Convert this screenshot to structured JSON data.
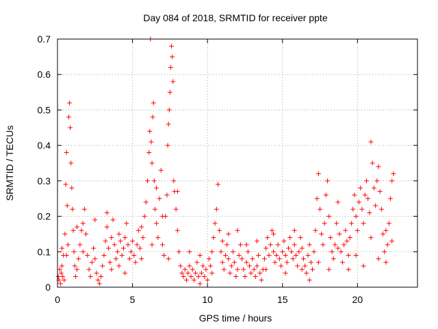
{
  "chart_data": {
    "type": "scatter",
    "title": "Day 084 of 2018, SRMTID for receiver ppte",
    "xlabel": "GPS time / hours",
    "ylabel": "SRMTID / TECUs",
    "xlim": [
      0,
      24
    ],
    "ylim": [
      0,
      0.7
    ],
    "xticks": [
      0,
      5,
      10,
      15,
      20
    ],
    "xtick_labels": [
      "0",
      "5",
      "10",
      "15",
      "20"
    ],
    "yticks": [
      0,
      0.1,
      0.2,
      0.3,
      0.4,
      0.5,
      0.6,
      0.7
    ],
    "ytick_labels": [
      "0",
      "0.1",
      "0.2",
      "0.3",
      "0.4",
      "0.5",
      "0.6",
      "0.7"
    ],
    "grid": true,
    "marker": "+",
    "color": "#ff0000",
    "series": [
      {
        "name": "SRMTID",
        "points": [
          [
            0.05,
            0.03
          ],
          [
            0.1,
            0.02
          ],
          [
            0.15,
            0.05
          ],
          [
            0.2,
            0.01
          ],
          [
            0.25,
            0.04
          ],
          [
            0.3,
            0.06
          ],
          [
            0.35,
            0.03
          ],
          [
            0.4,
            0.09
          ],
          [
            0.45,
            0.02
          ],
          [
            0.5,
            0.15
          ],
          [
            0.55,
            0.29
          ],
          [
            0.6,
            0.38
          ],
          [
            0.65,
            0.23
          ],
          [
            0.7,
            0.12
          ],
          [
            0.75,
            0.48
          ],
          [
            0.8,
            0.52
          ],
          [
            0.85,
            0.45
          ],
          [
            0.9,
            0.35
          ],
          [
            0.95,
            0.28
          ],
          [
            1.0,
            0.22
          ],
          [
            1.05,
            0.16
          ],
          [
            1.1,
            0.1
          ],
          [
            1.15,
            0.06
          ],
          [
            1.2,
            0.03
          ],
          [
            1.3,
            0.05
          ],
          [
            1.4,
            0.08
          ],
          [
            1.5,
            0.12
          ],
          [
            1.6,
            0.16
          ],
          [
            1.7,
            0.18
          ],
          [
            1.8,
            0.22
          ],
          [
            1.9,
            0.15
          ],
          [
            2.0,
            0.09
          ],
          [
            2.1,
            0.05
          ],
          [
            2.2,
            0.03
          ],
          [
            2.3,
            0.07
          ],
          [
            2.4,
            0.11
          ],
          [
            2.5,
            0.08
          ],
          [
            2.6,
            0.04
          ],
          [
            2.7,
            0.02
          ],
          [
            2.8,
            0.01
          ],
          [
            2.9,
            0.03
          ],
          [
            3.0,
            0.06
          ],
          [
            3.1,
            0.09
          ],
          [
            3.2,
            0.13
          ],
          [
            3.3,
            0.17
          ],
          [
            3.4,
            0.11
          ],
          [
            3.5,
            0.07
          ],
          [
            3.6,
            0.14
          ],
          [
            3.7,
            0.19
          ],
          [
            3.8,
            0.12
          ],
          [
            3.9,
            0.08
          ],
          [
            4.0,
            0.1
          ],
          [
            4.1,
            0.15
          ],
          [
            4.2,
            0.13
          ],
          [
            4.3,
            0.09
          ],
          [
            4.4,
            0.11
          ],
          [
            4.5,
            0.14
          ],
          [
            4.6,
            0.18
          ],
          [
            4.7,
            0.12
          ],
          [
            4.8,
            0.08
          ],
          [
            4.9,
            0.1
          ],
          [
            5.0,
            0.13
          ],
          [
            5.1,
            0.09
          ],
          [
            5.2,
            0.07
          ],
          [
            5.3,
            0.12
          ],
          [
            5.4,
            0.16
          ],
          [
            5.5,
            0.11
          ],
          [
            5.6,
            0.08
          ],
          [
            5.7,
            0.14
          ],
          [
            5.8,
            0.2
          ],
          [
            5.9,
            0.24
          ],
          [
            6.0,
            0.3
          ],
          [
            6.1,
            0.38
          ],
          [
            6.15,
            0.44
          ],
          [
            6.2,
            0.7
          ],
          [
            6.25,
            0.41
          ],
          [
            6.3,
            0.35
          ],
          [
            6.35,
            0.48
          ],
          [
            6.4,
            0.52
          ],
          [
            6.45,
            0.3
          ],
          [
            6.5,
            0.22
          ],
          [
            6.6,
            0.18
          ],
          [
            6.7,
            0.14
          ],
          [
            6.8,
            0.25
          ],
          [
            6.9,
            0.33
          ],
          [
            7.0,
            0.12
          ],
          [
            7.1,
            0.09
          ],
          [
            7.2,
            0.2
          ],
          [
            7.3,
            0.26
          ],
          [
            7.35,
            0.4
          ],
          [
            7.4,
            0.46
          ],
          [
            7.45,
            0.5
          ],
          [
            7.5,
            0.55
          ],
          [
            7.55,
            0.62
          ],
          [
            7.6,
            0.68
          ],
          [
            7.65,
            0.65
          ],
          [
            7.7,
            0.58
          ],
          [
            7.75,
            0.3
          ],
          [
            7.8,
            0.27
          ],
          [
            7.9,
            0.22
          ],
          [
            8.0,
            0.16
          ],
          [
            8.1,
            0.1
          ],
          [
            8.2,
            0.06
          ],
          [
            8.3,
            0.04
          ],
          [
            8.4,
            0.03
          ],
          [
            8.5,
            0.05
          ],
          [
            8.6,
            0.02
          ],
          [
            8.7,
            0.04
          ],
          [
            8.8,
            0.06
          ],
          [
            8.9,
            0.03
          ],
          [
            9.0,
            0.05
          ],
          [
            9.1,
            0.02
          ],
          [
            9.2,
            0.04
          ],
          [
            9.3,
            0.07
          ],
          [
            9.4,
            0.03
          ],
          [
            9.5,
            0.01
          ],
          [
            9.6,
            0.04
          ],
          [
            9.7,
            0.06
          ],
          [
            9.8,
            0.03
          ],
          [
            9.9,
            0.05
          ],
          [
            10.0,
            0.02
          ],
          [
            10.1,
            0.08
          ],
          [
            10.2,
            0.06
          ],
          [
            10.3,
            0.1
          ],
          [
            10.4,
            0.14
          ],
          [
            10.5,
            0.18
          ],
          [
            10.6,
            0.22
          ],
          [
            10.7,
            0.29
          ],
          [
            10.8,
            0.16
          ],
          [
            10.9,
            0.1
          ],
          [
            11.0,
            0.07
          ],
          [
            11.1,
            0.05
          ],
          [
            11.2,
            0.09
          ],
          [
            11.3,
            0.12
          ],
          [
            11.4,
            0.08
          ],
          [
            11.5,
            0.04
          ],
          [
            11.6,
            0.06
          ],
          [
            11.7,
            0.1
          ],
          [
            11.8,
            0.07
          ],
          [
            11.9,
            0.03
          ],
          [
            12.0,
            0.05
          ],
          [
            12.1,
            0.09
          ],
          [
            12.2,
            0.12
          ],
          [
            12.3,
            0.08
          ],
          [
            12.4,
            0.05
          ],
          [
            12.5,
            0.03
          ],
          [
            12.6,
            0.07
          ],
          [
            12.7,
            0.1
          ],
          [
            12.8,
            0.06
          ],
          [
            12.9,
            0.04
          ],
          [
            13.0,
            0.08
          ],
          [
            13.1,
            0.05
          ],
          [
            13.2,
            0.03
          ],
          [
            13.3,
            0.06
          ],
          [
            13.4,
            0.09
          ],
          [
            13.5,
            0.04
          ],
          [
            13.6,
            0.02
          ],
          [
            13.7,
            0.05
          ],
          [
            13.8,
            0.08
          ],
          [
            13.9,
            0.11
          ],
          [
            14.0,
            0.14
          ],
          [
            14.1,
            0.09
          ],
          [
            14.2,
            0.12
          ],
          [
            14.3,
            0.16
          ],
          [
            14.4,
            0.1
          ],
          [
            14.5,
            0.07
          ],
          [
            14.6,
            0.09
          ],
          [
            14.7,
            0.12
          ],
          [
            14.8,
            0.08
          ],
          [
            14.9,
            0.06
          ],
          [
            15.0,
            0.1
          ],
          [
            15.1,
            0.13
          ],
          [
            15.2,
            0.09
          ],
          [
            15.3,
            0.07
          ],
          [
            15.4,
            0.11
          ],
          [
            15.5,
            0.14
          ],
          [
            15.6,
            0.1
          ],
          [
            15.7,
            0.08
          ],
          [
            15.8,
            0.12
          ],
          [
            15.9,
            0.09
          ],
          [
            16.0,
            0.06
          ],
          [
            16.1,
            0.1
          ],
          [
            16.2,
            0.14
          ],
          [
            16.3,
            0.11
          ],
          [
            16.4,
            0.08
          ],
          [
            16.5,
            0.06
          ],
          [
            16.6,
            0.04
          ],
          [
            16.7,
            0.09
          ],
          [
            16.8,
            0.12
          ],
          [
            16.9,
            0.07
          ],
          [
            17.0,
            0.05
          ],
          [
            17.1,
            0.1
          ],
          [
            17.2,
            0.16
          ],
          [
            17.3,
            0.25
          ],
          [
            17.4,
            0.32
          ],
          [
            17.5,
            0.22
          ],
          [
            17.6,
            0.15
          ],
          [
            17.7,
            0.12
          ],
          [
            17.8,
            0.18
          ],
          [
            17.9,
            0.26
          ],
          [
            18.0,
            0.3
          ],
          [
            18.1,
            0.2
          ],
          [
            18.2,
            0.14
          ],
          [
            18.3,
            0.1
          ],
          [
            18.4,
            0.08
          ],
          [
            18.5,
            0.12
          ],
          [
            18.6,
            0.18
          ],
          [
            18.7,
            0.24
          ],
          [
            18.8,
            0.15
          ],
          [
            18.9,
            0.1
          ],
          [
            19.0,
            0.07
          ],
          [
            19.1,
            0.12
          ],
          [
            19.2,
            0.16
          ],
          [
            19.3,
            0.13
          ],
          [
            19.4,
            0.09
          ],
          [
            19.5,
            0.14
          ],
          [
            19.6,
            0.18
          ],
          [
            19.7,
            0.22
          ],
          [
            19.8,
            0.26
          ],
          [
            19.9,
            0.2
          ],
          [
            20.0,
            0.16
          ],
          [
            20.1,
            0.24
          ],
          [
            20.2,
            0.28
          ],
          [
            20.3,
            0.22
          ],
          [
            20.4,
            0.18
          ],
          [
            20.5,
            0.26
          ],
          [
            20.6,
            0.3
          ],
          [
            20.7,
            0.25
          ],
          [
            20.8,
            0.21
          ],
          [
            20.9,
            0.41
          ],
          [
            21.0,
            0.35
          ],
          [
            21.1,
            0.28
          ],
          [
            21.2,
            0.23
          ],
          [
            21.3,
            0.3
          ],
          [
            21.4,
            0.34
          ],
          [
            21.5,
            0.27
          ],
          [
            21.6,
            0.22
          ],
          [
            21.7,
            0.15
          ],
          [
            21.8,
            0.1
          ],
          [
            21.9,
            0.07
          ],
          [
            22.0,
            0.12
          ],
          [
            22.1,
            0.18
          ],
          [
            22.2,
            0.25
          ],
          [
            22.3,
            0.3
          ],
          [
            22.4,
            0.32
          ],
          [
            0.3,
            0.11
          ],
          [
            0.6,
            0.09
          ],
          [
            1.3,
            0.17
          ],
          [
            1.7,
            0.1
          ],
          [
            2.5,
            0.19
          ],
          [
            3.3,
            0.21
          ],
          [
            3.6,
            0.05
          ],
          [
            4.1,
            0.06
          ],
          [
            4.5,
            0.04
          ],
          [
            5.6,
            0.17
          ],
          [
            6.3,
            0.12
          ],
          [
            6.6,
            0.28
          ],
          [
            7.0,
            0.2
          ],
          [
            7.4,
            0.08
          ],
          [
            8.0,
            0.27
          ],
          [
            8.8,
            0.1
          ],
          [
            9.5,
            0.09
          ],
          [
            10.3,
            0.04
          ],
          [
            11.0,
            0.13
          ],
          [
            11.4,
            0.15
          ],
          [
            12.0,
            0.16
          ],
          [
            12.6,
            0.12
          ],
          [
            13.3,
            0.13
          ],
          [
            13.9,
            0.05
          ],
          [
            14.4,
            0.15
          ],
          [
            15.2,
            0.04
          ],
          [
            15.8,
            0.16
          ],
          [
            16.3,
            0.05
          ],
          [
            16.8,
            0.02
          ],
          [
            17.4,
            0.07
          ],
          [
            18.1,
            0.05
          ],
          [
            18.7,
            0.11
          ],
          [
            19.4,
            0.05
          ],
          [
            19.9,
            0.09
          ],
          [
            20.4,
            0.06
          ],
          [
            20.9,
            0.14
          ],
          [
            21.4,
            0.08
          ],
          [
            21.9,
            0.16
          ],
          [
            22.3,
            0.13
          ]
        ]
      }
    ]
  }
}
